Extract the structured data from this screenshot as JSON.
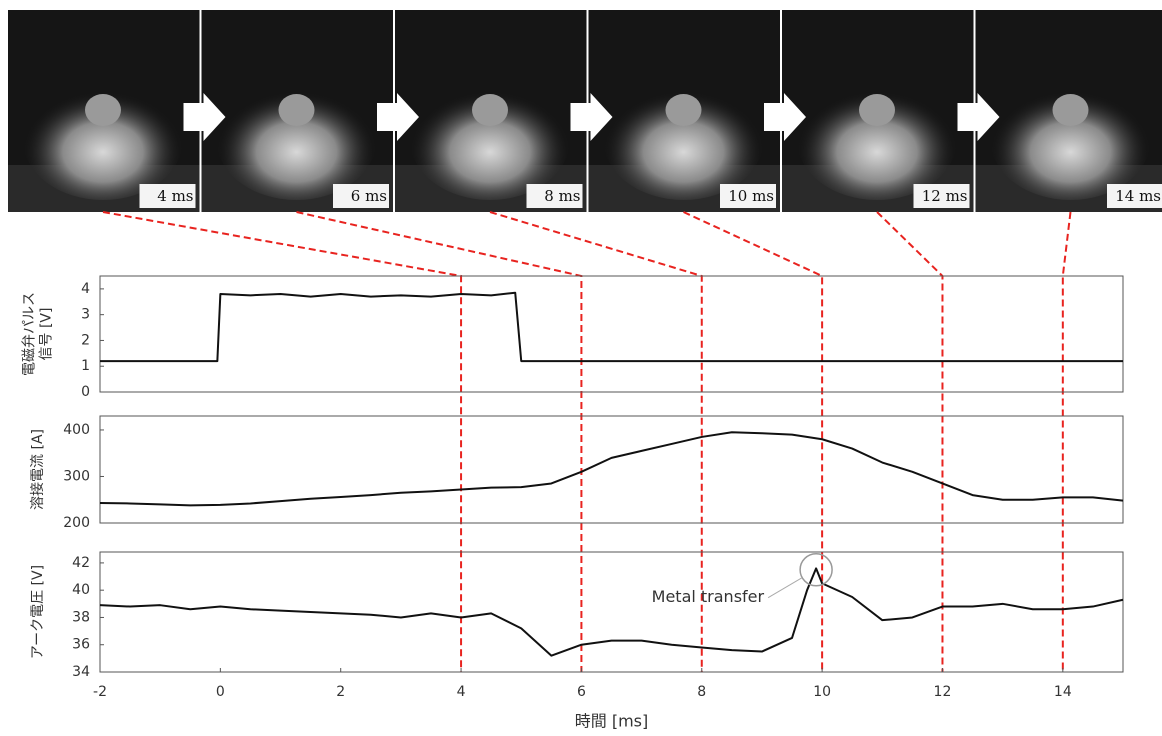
{
  "frames": [
    {
      "label": "4 ms",
      "time": 4
    },
    {
      "label": "6 ms",
      "time": 6
    },
    {
      "label": "8 ms",
      "time": 8
    },
    {
      "label": "10 ms",
      "time": 10
    },
    {
      "label": "12 ms",
      "time": 12
    },
    {
      "label": "14 ms",
      "time": 14
    }
  ],
  "chart_data": [
    {
      "type": "line",
      "ylabel": [
        "電磁弁パルス",
        "信号 [V]"
      ],
      "xlim": [
        -2,
        15
      ],
      "ylim": [
        0,
        4.5
      ],
      "yticks": [
        0,
        1,
        2,
        3,
        4
      ],
      "x": [
        -2,
        -1,
        -0.05,
        0,
        0.5,
        1,
        1.5,
        2,
        2.5,
        3,
        3.5,
        4,
        4.5,
        4.9,
        5,
        6,
        8,
        10,
        12,
        15
      ],
      "series": [
        {
          "color": "#111111",
          "values": [
            1.2,
            1.2,
            1.2,
            3.8,
            3.75,
            3.8,
            3.7,
            3.8,
            3.7,
            3.75,
            3.7,
            3.8,
            3.75,
            3.85,
            1.2,
            1.2,
            1.2,
            1.2,
            1.2,
            1.2
          ]
        }
      ]
    },
    {
      "type": "line",
      "ylabel": [
        "溶接電流 [A]"
      ],
      "xlim": [
        -2,
        15
      ],
      "ylim": [
        200,
        430
      ],
      "yticks": [
        200,
        300,
        400
      ],
      "x": [
        -2,
        -1.5,
        -1,
        -0.5,
        0,
        0.5,
        1,
        1.5,
        2,
        2.5,
        3,
        3.5,
        4,
        4.5,
        5,
        5.5,
        6,
        6.5,
        7,
        7.5,
        8,
        8.5,
        9,
        9.5,
        10,
        10.5,
        11,
        11.5,
        12,
        12.5,
        13,
        13.5,
        14,
        14.5,
        15
      ],
      "series": [
        {
          "color": "#111111",
          "values": [
            243,
            242,
            240,
            238,
            239,
            242,
            247,
            252,
            256,
            260,
            265,
            268,
            272,
            276,
            277,
            285,
            310,
            340,
            355,
            370,
            385,
            395,
            393,
            390,
            380,
            360,
            330,
            310,
            285,
            260,
            250,
            250,
            255,
            255,
            248
          ]
        }
      ]
    },
    {
      "type": "line",
      "ylabel": [
        "アーク電圧 [V]"
      ],
      "xlabel": "時間 [ms]",
      "xlim": [
        -2,
        15
      ],
      "ylim": [
        34,
        42.8
      ],
      "yticks": [
        34,
        36,
        38,
        40,
        42
      ],
      "xticks": [
        -2,
        0,
        2,
        4,
        6,
        8,
        10,
        12,
        14
      ],
      "x": [
        -2,
        -1.5,
        -1,
        -0.5,
        0,
        0.5,
        1,
        1.5,
        2,
        2.5,
        3,
        3.5,
        4,
        4.5,
        5,
        5.5,
        6,
        6.5,
        7,
        7.5,
        8,
        8.5,
        9,
        9.5,
        9.75,
        9.9,
        10,
        10.5,
        11,
        11.5,
        12,
        12.5,
        13,
        13.5,
        14,
        14.5,
        15
      ],
      "series": [
        {
          "color": "#111111",
          "values": [
            38.9,
            38.8,
            38.9,
            38.6,
            38.8,
            38.6,
            38.5,
            38.4,
            38.3,
            38.2,
            38.0,
            38.3,
            38.0,
            38.3,
            37.2,
            35.2,
            36.0,
            36.3,
            36.3,
            36.0,
            35.8,
            35.6,
            35.5,
            36.5,
            40.0,
            41.6,
            40.5,
            39.5,
            37.8,
            38.0,
            38.8,
            38.8,
            39.0,
            38.6,
            38.6,
            38.8,
            39.3
          ]
        }
      ],
      "annotation": {
        "text": "Metal transfer",
        "x": 9.9,
        "y": 41.5
      }
    }
  ]
}
